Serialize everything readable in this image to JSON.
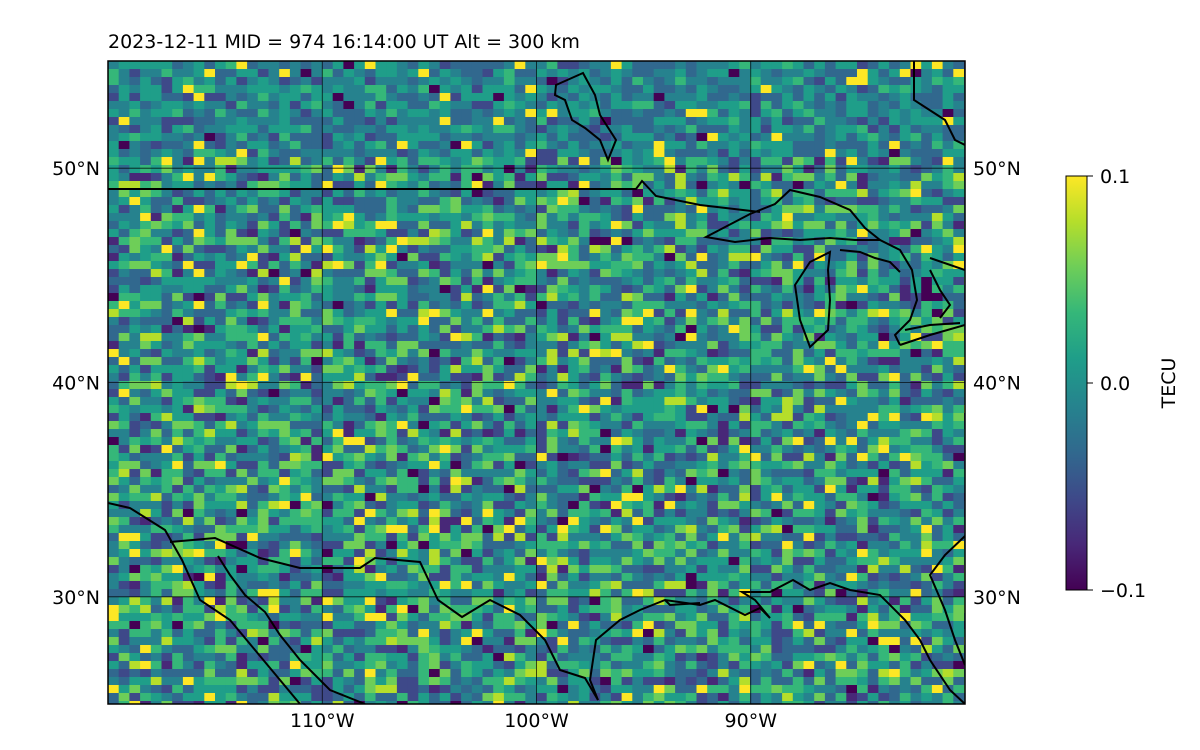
{
  "title": "2023-12-11  MID = 974    16:14:00  UT  Alt = 300 km",
  "map": {
    "lon_range": [
      -120,
      -80
    ],
    "lat_range": [
      25,
      55
    ],
    "lat_ticks": [
      {
        "value": 50,
        "label": "50°N"
      },
      {
        "value": 40,
        "label": "40°N"
      },
      {
        "value": 30,
        "label": "30°N"
      }
    ],
    "lon_ticks": [
      {
        "value": -110,
        "label": "110°W"
      },
      {
        "value": -100,
        "label": "100°W"
      },
      {
        "value": -90,
        "label": "90°W"
      }
    ],
    "colormap": "viridis",
    "gridlines": true,
    "coastlines": true
  },
  "colorbar": {
    "label": "TECU",
    "min": -0.1,
    "max": 0.1,
    "ticks": [
      {
        "value": 0.1,
        "label": "0.1"
      },
      {
        "value": 0.0,
        "label": "0.0"
      },
      {
        "value": -0.1,
        "label": "−0.1"
      }
    ],
    "colors": [
      "#440154",
      "#482878",
      "#3e4989",
      "#31688e",
      "#26828e",
      "#1f9e89",
      "#35b779",
      "#6ece58",
      "#b5de2b",
      "#fde725"
    ]
  }
}
